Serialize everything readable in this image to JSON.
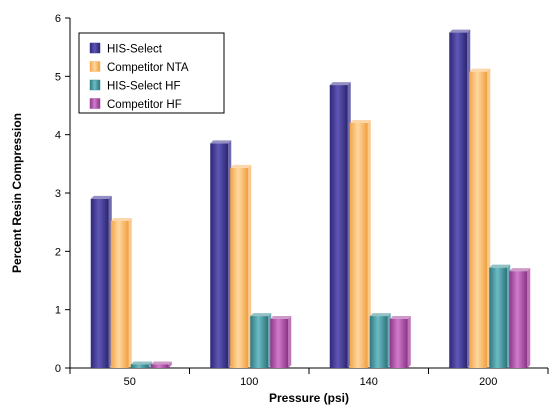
{
  "chart_data": {
    "type": "bar",
    "title": "",
    "xlabel": "Pressure (psi)",
    "ylabel": "Percent Resin Compression",
    "ylim": [
      0,
      6
    ],
    "yticks": [
      "0",
      "1",
      "2",
      "3",
      "4",
      "5",
      "6"
    ],
    "categories": [
      "50",
      "100",
      "140",
      "200"
    ],
    "grid": false,
    "legend_position": "top-left",
    "series": [
      {
        "name": "HIS-Select",
        "color": "#3d3591",
        "values": [
          2.9,
          3.85,
          4.85,
          5.75
        ]
      },
      {
        "name": "Competitor NTA",
        "color": "#fbb664",
        "values": [
          2.52,
          3.43,
          4.2,
          5.08
        ]
      },
      {
        "name": "HIS-Select HF",
        "color": "#3a8f98",
        "values": [
          0.06,
          0.89,
          0.89,
          1.72
        ]
      },
      {
        "name": "Competitor HF",
        "color": "#a8469f",
        "values": [
          0.06,
          0.84,
          0.84,
          1.66
        ]
      }
    ]
  }
}
